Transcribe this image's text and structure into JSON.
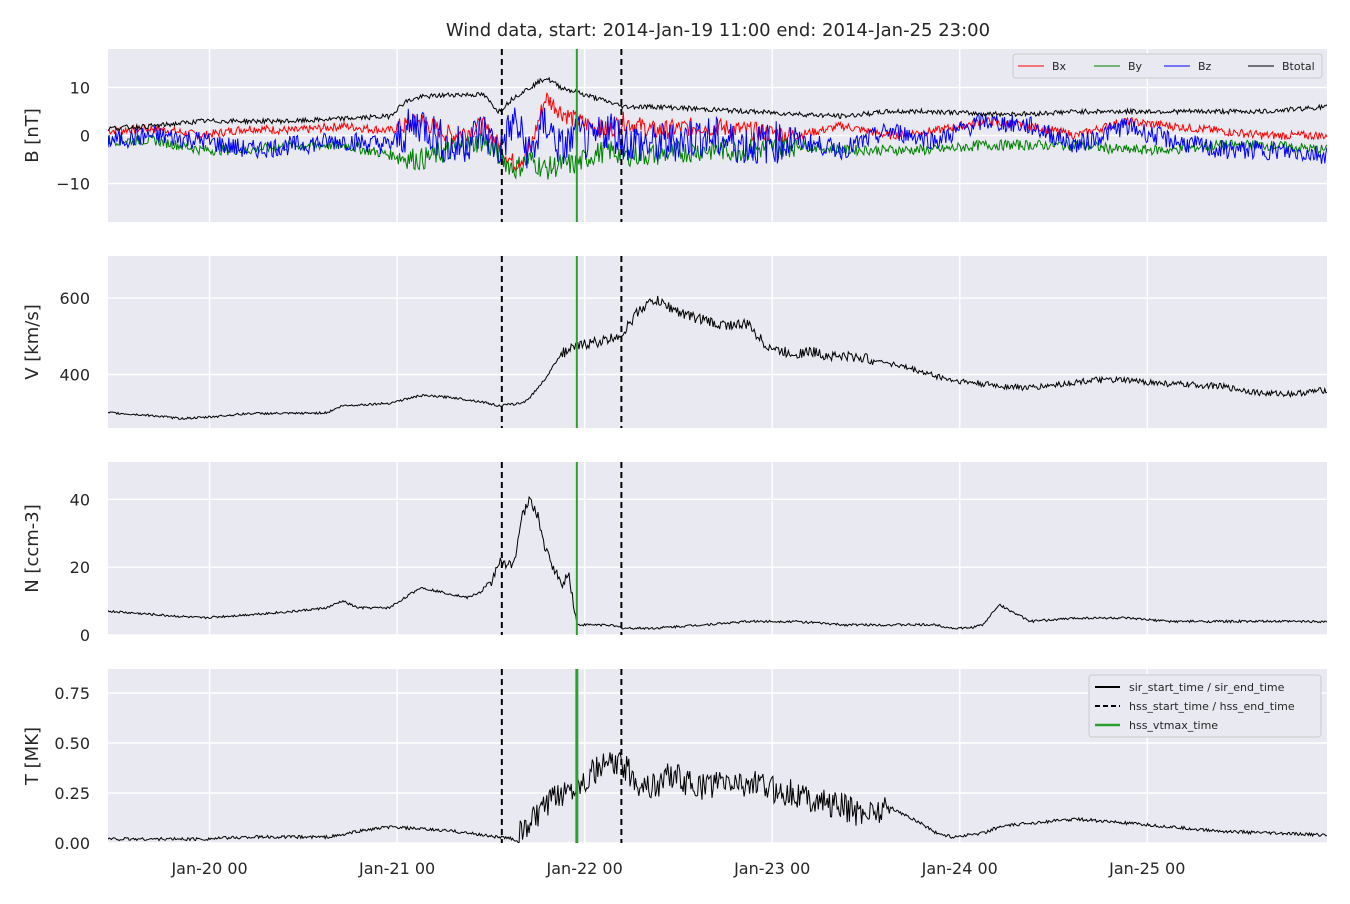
{
  "title": "Wind data, start: 2014-Jan-19 11:00  end: 2014-Jan-25 23:00",
  "colors": {
    "panel_bg": "#e9e9f1",
    "grid": "#ffffff",
    "bx": "#ff0000",
    "by": "#008000",
    "bz": "#0000ff",
    "btotal": "#000000",
    "vtmax": "#2ca02c",
    "text": "#262626"
  },
  "markers": {
    "hss_start": 50.4,
    "hss_vtmax": 60.0,
    "hss_end": 65.7
  },
  "legend_b": [
    "Bx",
    "By",
    "Bz",
    "Btotal"
  ],
  "legend_t": [
    {
      "label": "sir_start_time / sir_end_time",
      "style": "solid",
      "color": "#000000"
    },
    {
      "label": "hss_start_time / hss_end_time",
      "style": "dashed",
      "color": "#000000"
    },
    {
      "label": "hss_vtmax_time",
      "style": "solid",
      "color": "#2ca02c"
    }
  ],
  "x_ticks": [
    {
      "label": "Jan-20 00",
      "hours": 13
    },
    {
      "label": "Jan-21 00",
      "hours": 37
    },
    {
      "label": "Jan-22 00",
      "hours": 61
    },
    {
      "label": "Jan-23 00",
      "hours": 85
    },
    {
      "label": "Jan-24 00",
      "hours": 109
    },
    {
      "label": "Jan-25 00",
      "hours": 133
    }
  ],
  "chart_data": [
    {
      "type": "line",
      "ylabel": "B [nT]",
      "ylim": [
        -18,
        18
      ],
      "yticks": [
        {
          "v": 10,
          "label": "10"
        },
        {
          "v": 0,
          "label": "0"
        },
        {
          "v": -10,
          "label": "−10"
        }
      ],
      "series": [
        {
          "name": "Bx",
          "x": [
            0,
            6,
            12,
            18,
            24,
            30,
            36,
            40,
            44,
            48,
            50,
            52,
            54,
            56,
            58,
            60,
            62,
            64,
            66,
            70,
            76,
            82,
            88,
            94,
            100,
            106,
            112,
            118,
            124,
            130,
            136,
            142,
            148,
            156
          ],
          "y": [
            1,
            1.5,
            0,
            1.5,
            1,
            2,
            1,
            3,
            0,
            2,
            -2,
            -6,
            -3,
            8,
            5,
            3,
            2,
            1,
            3,
            1,
            2,
            1,
            0,
            2,
            0,
            1,
            3,
            2,
            0,
            3,
            2,
            1,
            0,
            0
          ]
        },
        {
          "name": "By",
          "x": [
            0,
            6,
            12,
            18,
            24,
            30,
            36,
            40,
            44,
            48,
            50,
            52,
            54,
            56,
            58,
            60,
            62,
            64,
            66,
            70,
            76,
            82,
            88,
            94,
            100,
            106,
            112,
            118,
            124,
            130,
            136,
            142,
            148,
            156
          ],
          "y": [
            -1,
            -1,
            -3,
            -3,
            -2,
            -2,
            -4,
            -5,
            -3,
            -1,
            -4,
            -7,
            -5,
            -7,
            -6,
            -6,
            -4,
            -3,
            -4,
            -4,
            -3,
            -3,
            -2,
            -3,
            -3,
            -3,
            -2,
            -2,
            -2,
            -3,
            -3,
            -2,
            -2,
            -3
          ]
        },
        {
          "name": "Bz",
          "x": [
            0,
            6,
            12,
            18,
            24,
            30,
            36,
            40,
            44,
            48,
            50,
            52,
            54,
            56,
            58,
            60,
            62,
            64,
            66,
            70,
            76,
            82,
            88,
            94,
            100,
            106,
            112,
            118,
            124,
            130,
            136,
            142,
            148,
            156
          ],
          "y": [
            -1,
            0,
            -1,
            -3,
            -2,
            -1,
            -2,
            3,
            -3,
            1,
            -3,
            3,
            -4,
            3,
            -3,
            0,
            -2,
            2,
            -1,
            -2,
            0,
            -2,
            -1,
            -3,
            1,
            -1,
            3,
            2,
            -2,
            2,
            -1,
            -3,
            -3,
            -4
          ]
        },
        {
          "name": "Btotal",
          "x": [
            0,
            6,
            12,
            18,
            24,
            30,
            36,
            38,
            40,
            44,
            48,
            50,
            52,
            54,
            56,
            58,
            60,
            62,
            64,
            66,
            70,
            76,
            82,
            88,
            94,
            100,
            106,
            112,
            118,
            124,
            130,
            136,
            142,
            148,
            156
          ],
          "y": [
            1.5,
            2,
            3,
            3,
            3,
            3.5,
            4,
            7,
            8,
            8.5,
            8.5,
            5,
            8,
            10,
            12,
            10,
            9,
            8,
            7,
            6,
            6,
            5.5,
            5,
            4.5,
            4,
            5,
            5,
            4.5,
            4.5,
            5,
            5,
            5,
            5,
            5,
            6
          ]
        }
      ]
    },
    {
      "type": "line",
      "ylabel": "V [km/s]",
      "ylim": [
        260,
        710
      ],
      "yticks": [
        {
          "v": 600,
          "label": "600"
        },
        {
          "v": 400,
          "label": "400"
        }
      ],
      "series": [
        {
          "name": "V",
          "x": [
            0,
            6,
            9,
            12,
            18,
            24,
            28,
            30,
            36,
            40,
            44,
            48,
            50,
            53,
            54,
            56,
            58,
            61,
            64,
            66,
            68,
            70,
            72,
            74,
            76,
            78,
            82,
            84,
            86,
            88,
            90,
            92,
            96,
            100,
            108,
            114,
            118,
            124,
            126,
            130,
            136,
            142,
            148,
            152,
            156
          ],
          "y": [
            300,
            292,
            285,
            287,
            298,
            298,
            300,
            318,
            325,
            345,
            340,
            328,
            318,
            325,
            340,
            390,
            455,
            480,
            490,
            510,
            570,
            595,
            575,
            555,
            545,
            530,
            530,
            480,
            460,
            455,
            460,
            450,
            445,
            430,
            385,
            370,
            365,
            380,
            385,
            385,
            375,
            370,
            350,
            350,
            360
          ]
        }
      ]
    },
    {
      "type": "line",
      "ylabel": "N [ccm-3]",
      "ylim": [
        0,
        51
      ],
      "yticks": [
        {
          "v": 40,
          "label": "40"
        },
        {
          "v": 20,
          "label": "20"
        },
        {
          "v": 0,
          "label": "0"
        }
      ],
      "series": [
        {
          "name": "N",
          "x": [
            0,
            6,
            12,
            18,
            24,
            28,
            30,
            32,
            36,
            38,
            40,
            44,
            46,
            48,
            49,
            50,
            51,
            52,
            53,
            54,
            55,
            56,
            57,
            58,
            59,
            60,
            61,
            62,
            64,
            66,
            70,
            76,
            82,
            88,
            94,
            100,
            106,
            108,
            110,
            112,
            114,
            118,
            124,
            130,
            136,
            142,
            148,
            156
          ],
          "y": [
            7,
            6,
            5,
            6,
            7,
            8,
            10,
            8,
            8,
            11,
            14,
            12,
            11,
            13,
            15,
            22,
            20,
            22,
            35,
            40,
            35,
            25,
            20,
            15,
            18,
            3,
            3,
            3,
            3,
            2,
            2,
            3,
            4,
            4,
            3,
            3,
            3,
            2,
            2,
            3,
            9,
            4,
            5,
            5,
            4,
            4,
            4,
            4
          ]
        }
      ]
    },
    {
      "type": "line",
      "ylabel": "T [MK]",
      "ylim": [
        0,
        0.87
      ],
      "yticks": [
        {
          "v": 0.75,
          "label": "0.75"
        },
        {
          "v": 0.5,
          "label": "0.50"
        },
        {
          "v": 0.25,
          "label": "0.25"
        },
        {
          "v": 0,
          "label": "0.00"
        }
      ],
      "series": [
        {
          "name": "T",
          "x": [
            0,
            6,
            12,
            18,
            24,
            28,
            30,
            32,
            36,
            40,
            44,
            48,
            50,
            52,
            53,
            54,
            56,
            58,
            60,
            62,
            64,
            66,
            68,
            70,
            72,
            74,
            76,
            78,
            82,
            84,
            86,
            88,
            90,
            92,
            94,
            96,
            100,
            104,
            106,
            108,
            112,
            114,
            118,
            124,
            130,
            136,
            142,
            148,
            156
          ],
          "y": [
            0.02,
            0.02,
            0.02,
            0.03,
            0.03,
            0.03,
            0.04,
            0.06,
            0.08,
            0.07,
            0.06,
            0.04,
            0.03,
            0.02,
            0.05,
            0.1,
            0.18,
            0.25,
            0.3,
            0.35,
            0.4,
            0.38,
            0.3,
            0.28,
            0.35,
            0.3,
            0.28,
            0.3,
            0.3,
            0.28,
            0.26,
            0.25,
            0.22,
            0.2,
            0.18,
            0.15,
            0.18,
            0.1,
            0.05,
            0.03,
            0.05,
            0.08,
            0.1,
            0.12,
            0.1,
            0.08,
            0.06,
            0.05,
            0.04
          ]
        }
      ]
    }
  ]
}
